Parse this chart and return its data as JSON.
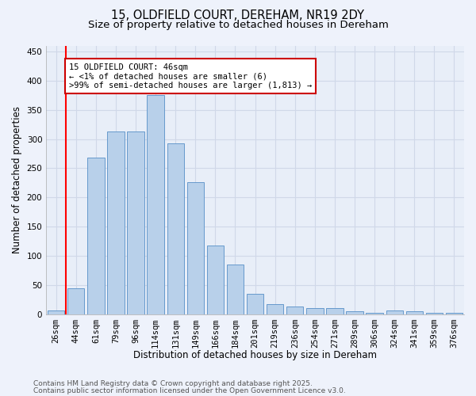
{
  "title_line1": "15, OLDFIELD COURT, DEREHAM, NR19 2DY",
  "title_line2": "Size of property relative to detached houses in Dereham",
  "xlabel": "Distribution of detached houses by size in Dereham",
  "ylabel": "Number of detached properties",
  "categories": [
    "26sqm",
    "44sqm",
    "61sqm",
    "79sqm",
    "96sqm",
    "114sqm",
    "131sqm",
    "149sqm",
    "166sqm",
    "184sqm",
    "201sqm",
    "219sqm",
    "236sqm",
    "254sqm",
    "271sqm",
    "289sqm",
    "306sqm",
    "324sqm",
    "341sqm",
    "359sqm",
    "376sqm"
  ],
  "values": [
    6,
    44,
    268,
    313,
    313,
    375,
    292,
    226,
    118,
    85,
    35,
    17,
    14,
    10,
    11,
    5,
    3,
    6,
    5,
    2,
    3
  ],
  "bar_color": "#b8d0ea",
  "bar_edge_color": "#6699cc",
  "red_line_index": 1,
  "annotation_title": "15 OLDFIELD COURT: 46sqm",
  "annotation_line2": "← <1% of detached houses are smaller (6)",
  "annotation_line3": ">99% of semi-detached houses are larger (1,813) →",
  "annotation_box_color": "#ffffff",
  "annotation_box_edge_color": "#cc0000",
  "ylim": [
    0,
    460
  ],
  "yticks": [
    0,
    50,
    100,
    150,
    200,
    250,
    300,
    350,
    400,
    450
  ],
  "footnote_line1": "Contains HM Land Registry data © Crown copyright and database right 2025.",
  "footnote_line2": "Contains public sector information licensed under the Open Government Licence v3.0.",
  "background_color": "#eef2fb",
  "plot_bg_color": "#e8eef8",
  "grid_color": "#d0d8e8",
  "title_fontsize": 10.5,
  "subtitle_fontsize": 9.5,
  "axis_label_fontsize": 8.5,
  "tick_fontsize": 7.5,
  "footnote_fontsize": 6.5,
  "annotation_fontsize": 7.5
}
